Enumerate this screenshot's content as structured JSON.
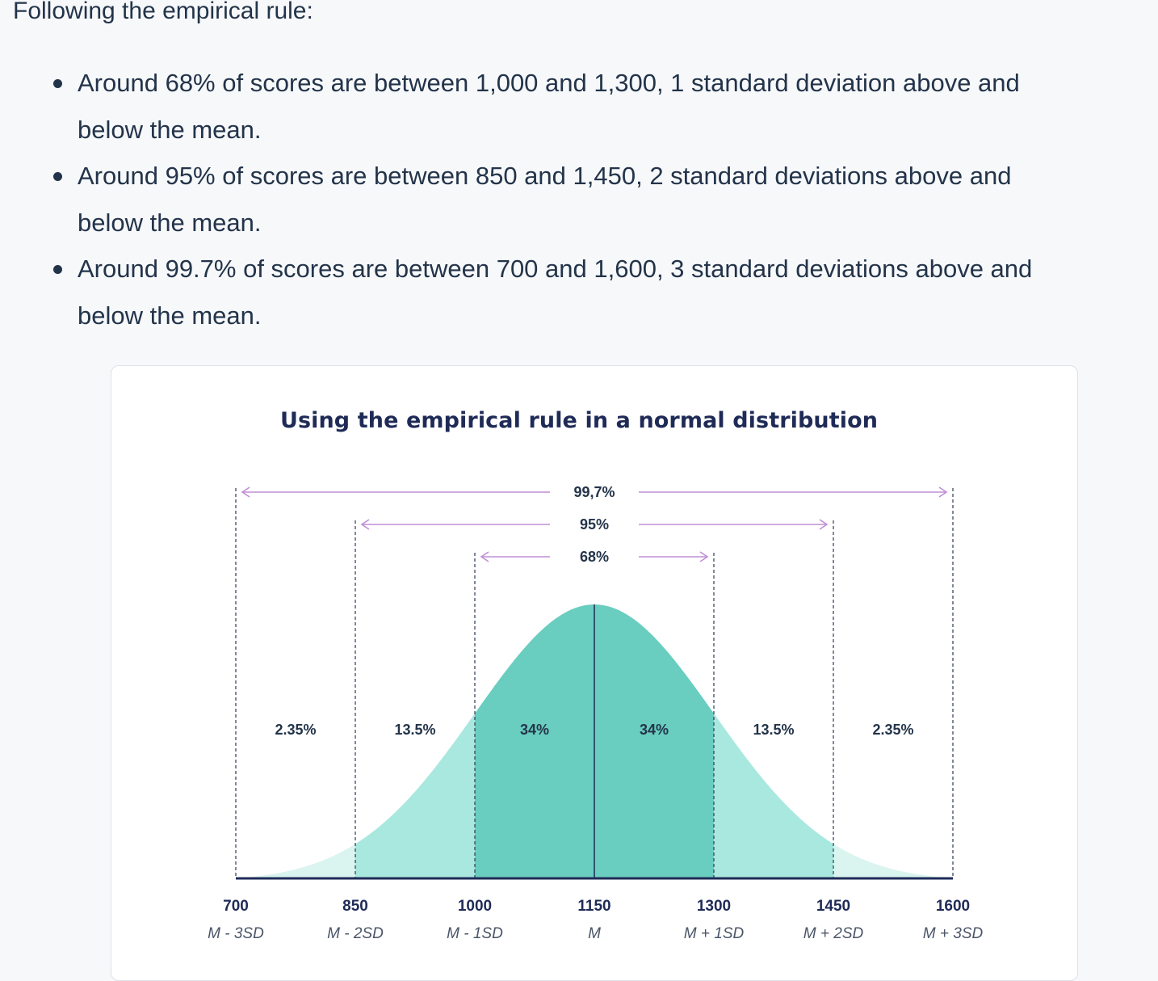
{
  "intro": "Following the empirical rule:",
  "bullets": [
    {
      "line1": "Around 68% of scores are between 1,000 and 1,300, 1 standard deviation above and",
      "line2": "below the mean."
    },
    {
      "line1": "Around 95% of scores are between 850 and 1,450, 2 standard deviations above and",
      "line2": "below the mean."
    },
    {
      "line1": "Around 99.7% of scores are between 700 and 1,600, 3 standard deviations above and",
      "line2": "below the mean."
    }
  ],
  "colors": {
    "text": "#23344a",
    "title": "#1f2b57",
    "outer_fill": "#daf4ef",
    "middle_fill": "#a8e8df",
    "inner_fill": "#69cdbf",
    "arrow": "#c08fd6",
    "axis": "#1f2b57"
  },
  "chart_data": {
    "type": "area",
    "title": "Using the empirical rule in a normal distribution",
    "mean": 1150,
    "sd": 150,
    "xlim": [
      700,
      1600
    ],
    "x_ticks": [
      {
        "value": 700,
        "label": "700",
        "sublabel": "M - 3SD"
      },
      {
        "value": 850,
        "label": "850",
        "sublabel": "M - 2SD"
      },
      {
        "value": 1000,
        "label": "1000",
        "sublabel": "M - 1SD"
      },
      {
        "value": 1150,
        "label": "1150",
        "sublabel": "M"
      },
      {
        "value": 1300,
        "label": "1300",
        "sublabel": "M + 1SD"
      },
      {
        "value": 1450,
        "label": "1450",
        "sublabel": "M + 2SD"
      },
      {
        "value": 1600,
        "label": "1600",
        "sublabel": "M + 3SD"
      }
    ],
    "segments": [
      {
        "from": 700,
        "to": 850,
        "label": "2.35%"
      },
      {
        "from": 850,
        "to": 1000,
        "label": "13.5%"
      },
      {
        "from": 1000,
        "to": 1150,
        "label": "34%"
      },
      {
        "from": 1150,
        "to": 1300,
        "label": "34%"
      },
      {
        "from": 1300,
        "to": 1450,
        "label": "13.5%"
      },
      {
        "from": 1450,
        "to": 1600,
        "label": "2.35%"
      }
    ],
    "ranges": [
      {
        "from": 700,
        "to": 1600,
        "label": "99,7%"
      },
      {
        "from": 850,
        "to": 1450,
        "label": "95%"
      },
      {
        "from": 1000,
        "to": 1300,
        "label": "68%"
      }
    ]
  }
}
